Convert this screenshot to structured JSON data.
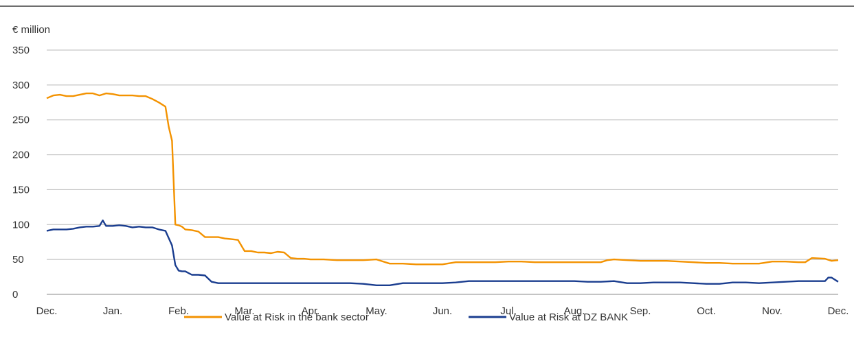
{
  "chart_data": {
    "type": "line",
    "unit_label": "€ million",
    "ylim": [
      0,
      350
    ],
    "y_ticks": [
      0,
      50,
      100,
      150,
      200,
      250,
      300,
      350
    ],
    "x_labels": [
      "Dec.",
      "Jan.",
      "Feb.",
      "Mar.",
      "Apr.",
      "May.",
      "Jun.",
      "Jul.",
      "Aug.",
      "Sep.",
      "Oct.",
      "Nov.",
      "Dec."
    ],
    "xlim": [
      0,
      12
    ],
    "grid": "horizontal",
    "legend_position": "bottom-center",
    "series": [
      {
        "name": "Value at Risk in the bank sector",
        "color": "#F39200",
        "x": [
          0,
          0.1,
          0.2,
          0.3,
          0.4,
          0.5,
          0.6,
          0.7,
          0.8,
          0.9,
          1.0,
          1.1,
          1.2,
          1.3,
          1.4,
          1.5,
          1.6,
          1.7,
          1.8,
          1.85,
          1.9,
          1.95,
          2.0,
          2.05,
          2.1,
          2.2,
          2.3,
          2.4,
          2.5,
          2.6,
          2.7,
          2.8,
          2.9,
          3.0,
          3.1,
          3.2,
          3.3,
          3.4,
          3.5,
          3.6,
          3.7,
          3.8,
          3.9,
          4.0,
          4.2,
          4.4,
          4.6,
          4.8,
          5.0,
          5.2,
          5.4,
          5.6,
          5.8,
          6.0,
          6.2,
          6.4,
          6.6,
          6.8,
          7.0,
          7.2,
          7.4,
          7.6,
          7.8,
          8.0,
          8.2,
          8.4,
          8.5,
          8.6,
          8.8,
          9.0,
          9.2,
          9.4,
          9.6,
          9.8,
          10.0,
          10.2,
          10.4,
          10.6,
          10.8,
          11.0,
          11.2,
          11.4,
          11.5,
          11.6,
          11.8,
          11.9,
          12.0
        ],
        "y": [
          281,
          285,
          286,
          284,
          284,
          286,
          288,
          288,
          285,
          288,
          287,
          285,
          285,
          285,
          284,
          284,
          280,
          275,
          269,
          240,
          220,
          100,
          99,
          97,
          93,
          92,
          90,
          82,
          82,
          82,
          80,
          79,
          78,
          62,
          62,
          60,
          60,
          59,
          61,
          60,
          52,
          51,
          51,
          50,
          50,
          49,
          49,
          49,
          50,
          44,
          44,
          43,
          43,
          43,
          46,
          46,
          46,
          46,
          47,
          47,
          46,
          46,
          46,
          46,
          46,
          46,
          49,
          50,
          49,
          48,
          48,
          48,
          47,
          46,
          45,
          45,
          44,
          44,
          44,
          47,
          47,
          46,
          46,
          52,
          51,
          48,
          49
        ]
      },
      {
        "name": "Value at Risk at DZ BANK",
        "color": "#1A3D8F",
        "x": [
          0,
          0.1,
          0.2,
          0.3,
          0.4,
          0.5,
          0.6,
          0.7,
          0.8,
          0.85,
          0.9,
          1.0,
          1.1,
          1.2,
          1.3,
          1.4,
          1.5,
          1.6,
          1.7,
          1.8,
          1.9,
          1.95,
          2.0,
          2.05,
          2.1,
          2.2,
          2.3,
          2.4,
          2.5,
          2.6,
          2.8,
          3.0,
          3.2,
          3.4,
          3.6,
          3.8,
          4.0,
          4.2,
          4.4,
          4.6,
          4.8,
          5.0,
          5.2,
          5.4,
          5.6,
          5.8,
          6.0,
          6.2,
          6.4,
          6.6,
          6.8,
          7.0,
          7.2,
          7.4,
          7.6,
          7.8,
          8.0,
          8.2,
          8.4,
          8.6,
          8.8,
          9.0,
          9.2,
          9.4,
          9.6,
          9.8,
          10.0,
          10.2,
          10.4,
          10.6,
          10.8,
          11.0,
          11.2,
          11.4,
          11.6,
          11.8,
          11.85,
          11.9,
          12.0
        ],
        "y": [
          91,
          93,
          93,
          93,
          94,
          96,
          97,
          97,
          98,
          106,
          98,
          98,
          99,
          98,
          96,
          97,
          96,
          96,
          93,
          91,
          70,
          42,
          34,
          33,
          33,
          28,
          28,
          27,
          18,
          16,
          16,
          16,
          16,
          16,
          16,
          16,
          16,
          16,
          16,
          16,
          15,
          13,
          13,
          16,
          16,
          16,
          16,
          17,
          19,
          19,
          19,
          19,
          19,
          19,
          19,
          19,
          19,
          18,
          18,
          19,
          16,
          16,
          17,
          17,
          17,
          16,
          15,
          15,
          17,
          17,
          16,
          17,
          18,
          19,
          19,
          19,
          24,
          24,
          18
        ]
      }
    ]
  }
}
